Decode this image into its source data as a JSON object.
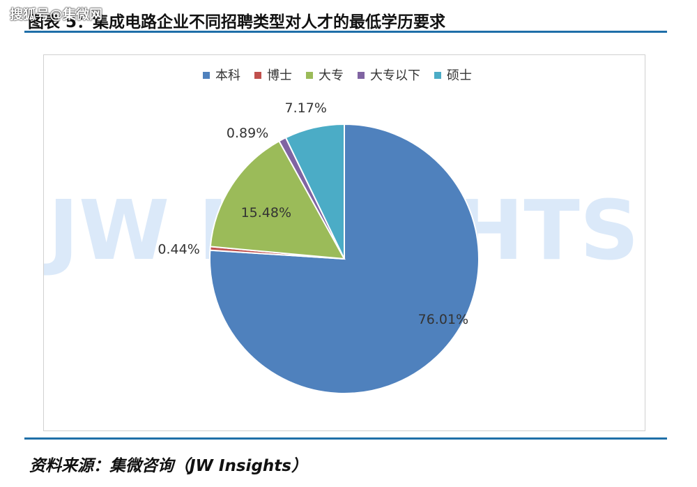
{
  "watermark_text": "搜狐号@集微网",
  "header": {
    "title": "图表 5：集成电路企业不同招聘类型对人才的最低学历要求"
  },
  "chart_watermark": "JW INSIGHTS",
  "footer": {
    "source": "资料来源：集微咨询（JW Insights）"
  },
  "chart_data": {
    "type": "pie",
    "title": "",
    "legend_position": "top",
    "slices": [
      {
        "label": "本科",
        "value": 76.01,
        "display": "76.01%",
        "color": "#4f81bd"
      },
      {
        "label": "博士",
        "value": 0.44,
        "display": "0.44%",
        "color": "#c0504d"
      },
      {
        "label": "大专",
        "value": 15.48,
        "display": "15.48%",
        "color": "#9bbb59"
      },
      {
        "label": "大专以下",
        "value": 0.89,
        "display": "0.89%",
        "color": "#8064a2"
      },
      {
        "label": "硕士",
        "value": 7.17,
        "display": "7.17%",
        "color": "#4bacc6"
      }
    ]
  }
}
